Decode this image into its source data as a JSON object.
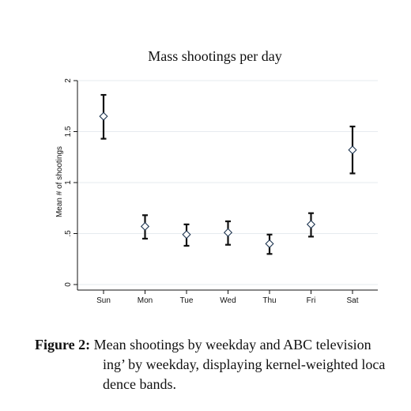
{
  "chart_data": {
    "type": "scatter",
    "title": "Mass shootings per day",
    "xlabel": "",
    "ylabel": "Mean # of shootings",
    "categories": [
      "Sun",
      "Mon",
      "Tue",
      "Wed",
      "Thu",
      "Fri",
      "Sat"
    ],
    "means": [
      1.65,
      0.57,
      0.49,
      0.51,
      0.4,
      0.59,
      1.32
    ],
    "ci_low": [
      1.43,
      0.45,
      0.38,
      0.39,
      0.3,
      0.47,
      1.09
    ],
    "ci_high": [
      1.86,
      0.68,
      0.59,
      0.62,
      0.49,
      0.7,
      1.55
    ],
    "ylim": [
      0,
      2
    ],
    "yticks": [
      0,
      0.5,
      1,
      1.5,
      2
    ],
    "ytick_labels": [
      "0",
      ".5",
      "1",
      "1.5",
      "2"
    ],
    "grid": true,
    "marker": "hollow-diamond",
    "errorbar_color": "#111111",
    "grid_color": "#e6ebef"
  },
  "caption": {
    "label": "Figure 2:",
    "line1": "Mean shootings by weekday and ABC television",
    "line2": "ing’ by weekday, displaying kernel-weighted loca",
    "line3": "dence bands."
  }
}
